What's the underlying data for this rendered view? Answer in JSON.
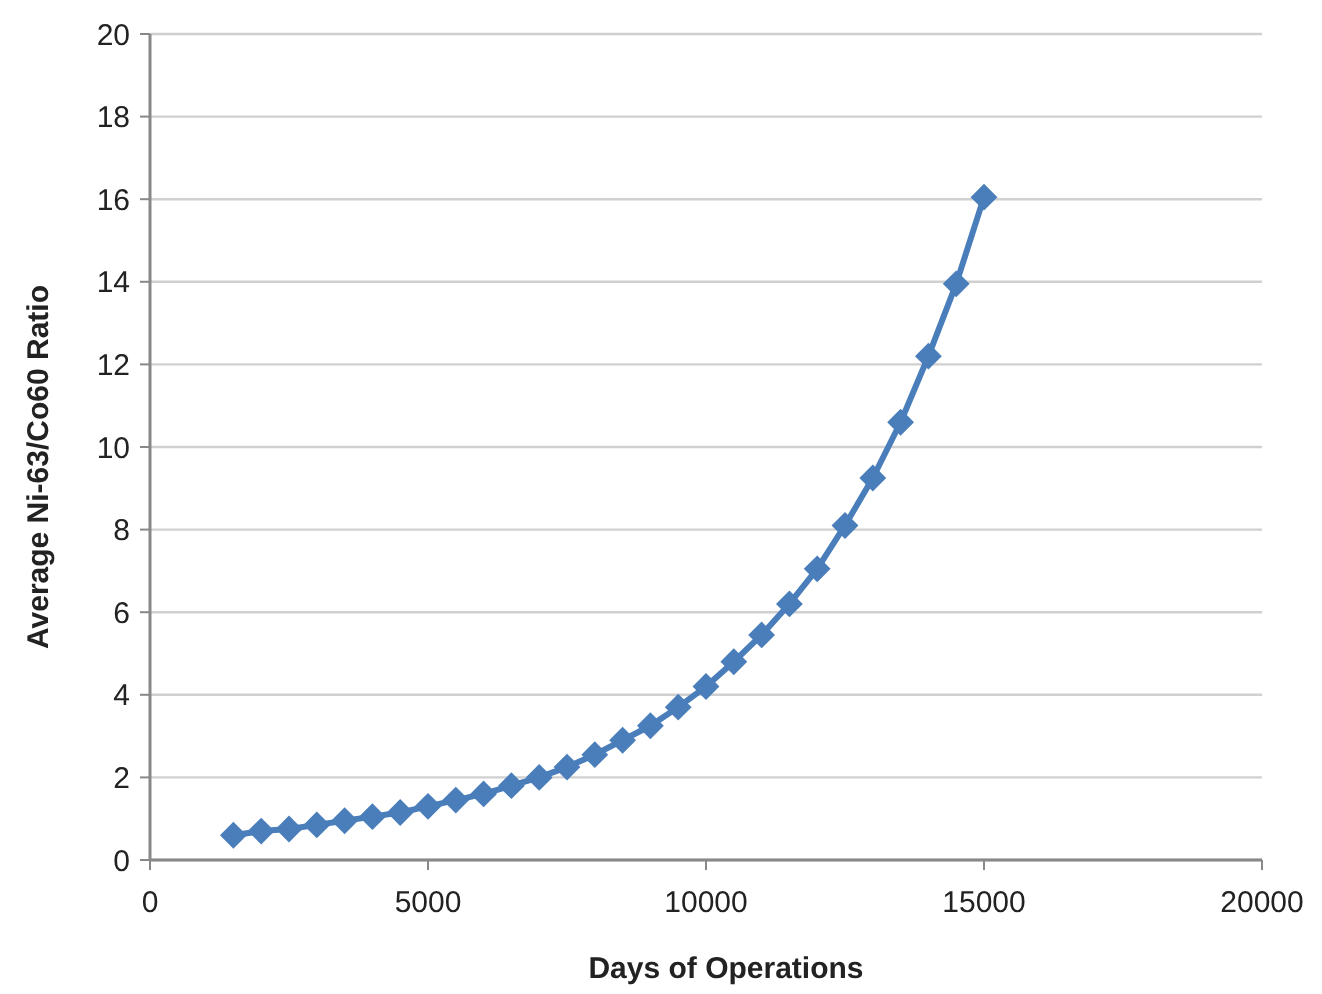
{
  "chart_data": {
    "type": "line",
    "xlabel": "Days of Operations",
    "ylabel": "Average Ni-63/Co60 Ratio",
    "x": [
      1500,
      2000,
      2500,
      3000,
      3500,
      4000,
      4500,
      5000,
      5500,
      6000,
      6500,
      7000,
      7500,
      8000,
      8500,
      9000,
      9500,
      10000,
      10500,
      11000,
      11500,
      12000,
      12500,
      13000,
      13500,
      14000,
      14500,
      15000
    ],
    "series": [
      {
        "color": "#4a7ebb",
        "values": [
          0.6,
          0.7,
          0.75,
          0.85,
          0.95,
          1.05,
          1.15,
          1.3,
          1.45,
          1.6,
          1.8,
          2.0,
          2.25,
          2.55,
          2.9,
          3.25,
          3.7,
          4.2,
          4.8,
          5.45,
          6.2,
          7.05,
          8.1,
          9.25,
          10.6,
          12.2,
          13.95,
          16.05
        ]
      }
    ],
    "xlim": [
      0,
      20000
    ],
    "xticks": [
      0,
      5000,
      10000,
      15000,
      20000
    ],
    "ylim": [
      0,
      20
    ],
    "yticks": [
      0,
      2,
      4,
      6,
      8,
      10,
      12,
      14,
      16,
      18,
      20
    ],
    "grid": "y",
    "marker": "diamond",
    "line_style": "solid"
  }
}
